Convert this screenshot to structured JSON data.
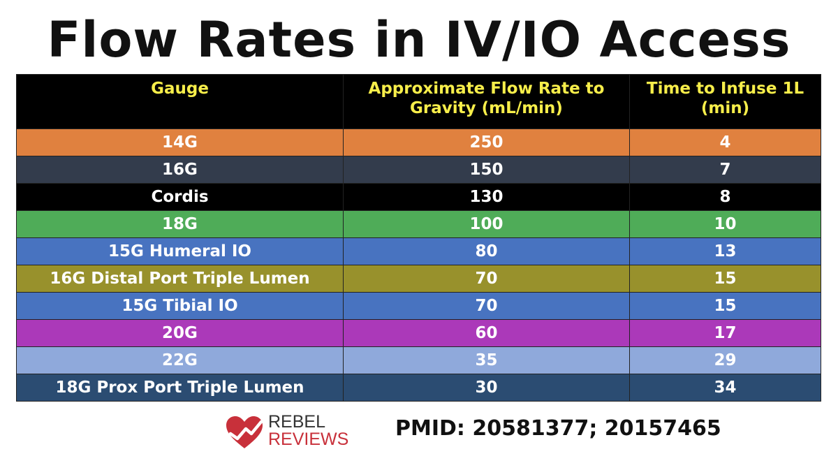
{
  "title": "Flow Rates in IV/IO Access",
  "table": {
    "headers": [
      "Gauge",
      "Approximate Flow Rate to Gravity (mL/min)",
      "Time to Infuse 1L (min)"
    ],
    "rows": [
      {
        "gauge": "14G",
        "flow": "250",
        "time": "4",
        "color": "#e0813f",
        "text_color": "#ffffff"
      },
      {
        "gauge": "16G",
        "flow": "150",
        "time": "7",
        "color": "#333c4c",
        "text_color": "#ffffff"
      },
      {
        "gauge": "Cordis",
        "flow": "130",
        "time": "8",
        "color": "#000000",
        "text_color": "#ffffff"
      },
      {
        "gauge": "18G",
        "flow": "100",
        "time": "10",
        "color": "#4fac58",
        "text_color": "#ffffff"
      },
      {
        "gauge": "15G Humeral IO",
        "flow": "80",
        "time": "13",
        "color": "#4873c0",
        "text_color": "#ffffff"
      },
      {
        "gauge": "16G Distal Port Triple Lumen",
        "flow": "70",
        "time": "15",
        "color": "#98912c",
        "text_color": "#ffffff"
      },
      {
        "gauge": "15G Tibial IO",
        "flow": "70",
        "time": "15",
        "color": "#4873c0",
        "text_color": "#ffffff"
      },
      {
        "gauge": "20G",
        "flow": "60",
        "time": "17",
        "color": "#ab39b9",
        "text_color": "#ffffff"
      },
      {
        "gauge": "22G",
        "flow": "35",
        "time": "29",
        "color": "#8fa9db",
        "text_color": "#ffffff"
      },
      {
        "gauge": "18G Prox Port Triple Lumen",
        "flow": "30",
        "time": "34",
        "color": "#2b4c72",
        "text_color": "#ffffff"
      }
    ]
  },
  "logo": {
    "line1": "REBEL",
    "line2": "REVIEWS",
    "icon": "heart-check-icon"
  },
  "pmid": "PMID: 20581377; 20157465",
  "colors": {
    "header_bg": "#000000",
    "header_text": "#f7ee4a",
    "logo_red": "#c8303a"
  }
}
